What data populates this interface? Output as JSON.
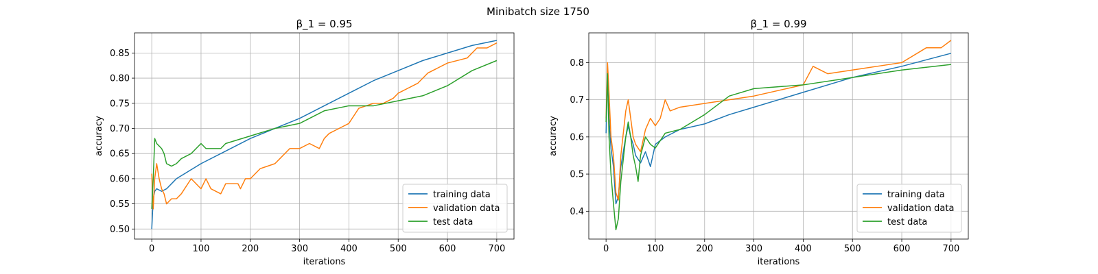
{
  "figure": {
    "suptitle": "Minibatch size 1750"
  },
  "colors": {
    "training": "#1f77b4",
    "validation": "#ff7f0e",
    "test": "#2ca02c"
  },
  "chart_data": [
    {
      "type": "line",
      "title": "β_1 = 0.95",
      "xlabel": "iterations",
      "ylabel": "accuracy",
      "xlim": [
        -35,
        735
      ],
      "ylim": [
        0.48,
        0.89
      ],
      "xticks": [
        0,
        100,
        200,
        300,
        400,
        500,
        600,
        700
      ],
      "yticks": [
        0.5,
        0.55,
        0.6,
        0.65,
        0.7,
        0.75,
        0.8,
        0.85
      ],
      "ytick_labels": [
        "0.50",
        "0.55",
        "0.60",
        "0.65",
        "0.70",
        "0.75",
        "0.80",
        "0.85"
      ],
      "grid": true,
      "legend": "lower right",
      "series": [
        {
          "name": "training data",
          "color": "#1f77b4",
          "x": [
            0,
            3,
            6,
            10,
            20,
            30,
            50,
            100,
            150,
            200,
            250,
            300,
            350,
            400,
            450,
            500,
            550,
            600,
            650,
            700
          ],
          "y": [
            0.5,
            0.56,
            0.575,
            0.58,
            0.575,
            0.58,
            0.6,
            0.63,
            0.655,
            0.68,
            0.7,
            0.72,
            0.745,
            0.77,
            0.795,
            0.815,
            0.835,
            0.85,
            0.865,
            0.875
          ]
        },
        {
          "name": "validation data",
          "color": "#ff7f0e",
          "x": [
            0,
            3,
            6,
            10,
            15,
            20,
            25,
            30,
            40,
            50,
            60,
            80,
            100,
            110,
            120,
            140,
            150,
            175,
            180,
            190,
            200,
            220,
            250,
            260,
            280,
            300,
            320,
            340,
            350,
            360,
            380,
            400,
            420,
            450,
            470,
            490,
            500,
            520,
            540,
            560,
            580,
            600,
            640,
            660,
            680,
            700
          ],
          "y": [
            0.61,
            0.54,
            0.6,
            0.63,
            0.6,
            0.58,
            0.57,
            0.55,
            0.56,
            0.56,
            0.57,
            0.6,
            0.58,
            0.6,
            0.58,
            0.57,
            0.59,
            0.59,
            0.58,
            0.6,
            0.6,
            0.62,
            0.63,
            0.64,
            0.66,
            0.66,
            0.67,
            0.66,
            0.68,
            0.69,
            0.7,
            0.71,
            0.74,
            0.75,
            0.75,
            0.76,
            0.77,
            0.78,
            0.79,
            0.81,
            0.82,
            0.83,
            0.84,
            0.86,
            0.86,
            0.87
          ]
        },
        {
          "name": "test data",
          "color": "#2ca02c",
          "x": [
            0,
            3,
            6,
            10,
            15,
            20,
            25,
            30,
            40,
            50,
            60,
            80,
            100,
            110,
            120,
            140,
            150,
            200,
            250,
            300,
            350,
            400,
            450,
            500,
            550,
            600,
            650,
            700
          ],
          "y": [
            0.54,
            0.6,
            0.68,
            0.67,
            0.665,
            0.66,
            0.65,
            0.63,
            0.625,
            0.63,
            0.64,
            0.65,
            0.67,
            0.66,
            0.66,
            0.66,
            0.67,
            0.685,
            0.7,
            0.71,
            0.735,
            0.745,
            0.745,
            0.755,
            0.765,
            0.785,
            0.815,
            0.835
          ]
        }
      ]
    },
    {
      "type": "line",
      "title": "β_1 = 0.99",
      "xlabel": "iterations",
      "ylabel": "accuracy",
      "xlim": [
        -35,
        735
      ],
      "ylim": [
        0.325,
        0.88
      ],
      "xticks": [
        0,
        100,
        200,
        300,
        400,
        500,
        600,
        700
      ],
      "yticks": [
        0.4,
        0.5,
        0.6,
        0.7,
        0.8
      ],
      "ytick_labels": [
        "0.4",
        "0.5",
        "0.6",
        "0.7",
        "0.8"
      ],
      "grid": true,
      "legend": "lower right",
      "series": [
        {
          "name": "training data",
          "color": "#1f77b4",
          "x": [
            0,
            3,
            6,
            10,
            15,
            20,
            25,
            30,
            40,
            45,
            50,
            55,
            60,
            70,
            80,
            90,
            100,
            110,
            120,
            150,
            200,
            250,
            300,
            400,
            500,
            600,
            700
          ],
          "y": [
            0.61,
            0.76,
            0.65,
            0.57,
            0.52,
            0.42,
            0.44,
            0.52,
            0.6,
            0.63,
            0.6,
            0.58,
            0.55,
            0.53,
            0.56,
            0.52,
            0.58,
            0.59,
            0.6,
            0.62,
            0.635,
            0.66,
            0.68,
            0.72,
            0.76,
            0.79,
            0.825
          ]
        },
        {
          "name": "validation data",
          "color": "#ff7f0e",
          "x": [
            0,
            3,
            6,
            10,
            15,
            20,
            25,
            30,
            40,
            45,
            50,
            55,
            60,
            70,
            80,
            90,
            100,
            110,
            120,
            130,
            150,
            200,
            250,
            300,
            400,
            420,
            450,
            550,
            600,
            650,
            680,
            700
          ],
          "y": [
            0.65,
            0.8,
            0.72,
            0.6,
            0.55,
            0.45,
            0.43,
            0.55,
            0.67,
            0.7,
            0.65,
            0.6,
            0.58,
            0.56,
            0.62,
            0.65,
            0.63,
            0.65,
            0.7,
            0.67,
            0.68,
            0.69,
            0.7,
            0.71,
            0.74,
            0.79,
            0.77,
            0.79,
            0.8,
            0.84,
            0.84,
            0.86
          ]
        },
        {
          "name": "test data",
          "color": "#2ca02c",
          "x": [
            0,
            3,
            6,
            10,
            15,
            20,
            25,
            30,
            40,
            45,
            50,
            55,
            60,
            65,
            70,
            80,
            90,
            100,
            110,
            120,
            150,
            200,
            250,
            300,
            400,
            500,
            600,
            700
          ],
          "y": [
            0.64,
            0.77,
            0.6,
            0.5,
            0.42,
            0.35,
            0.38,
            0.48,
            0.6,
            0.64,
            0.6,
            0.55,
            0.52,
            0.48,
            0.55,
            0.6,
            0.58,
            0.57,
            0.59,
            0.61,
            0.62,
            0.66,
            0.71,
            0.73,
            0.74,
            0.76,
            0.78,
            0.795
          ]
        }
      ]
    }
  ]
}
